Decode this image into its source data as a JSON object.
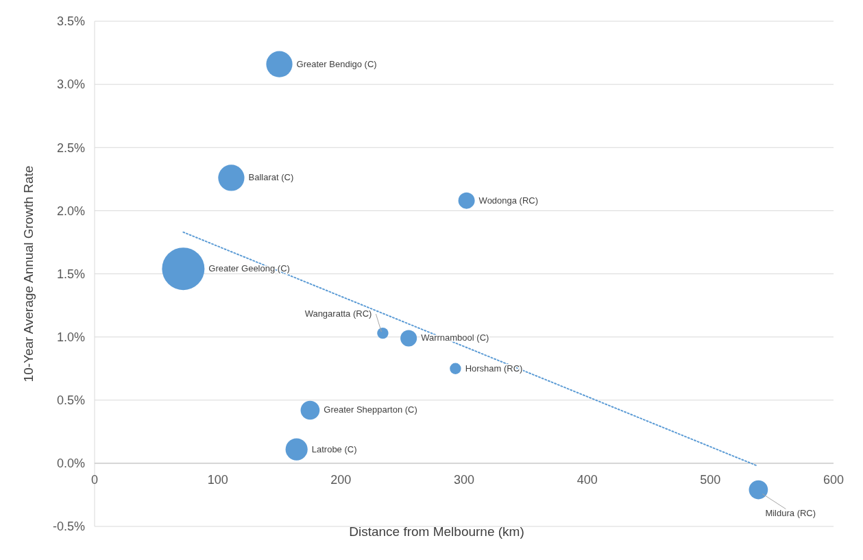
{
  "chart_data": {
    "type": "bubble",
    "xlabel": "Distance from Melbourne (km)",
    "ylabel": "10-Year Average Annual Growth Rate",
    "xlim": [
      0,
      600
    ],
    "xticks": [
      0,
      100,
      200,
      300,
      400,
      500,
      600
    ],
    "ylim": [
      -0.5,
      3.5
    ],
    "yticks": [
      {
        "value": -0.5,
        "label": "-0.5%"
      },
      {
        "value": 0,
        "label": "0.0%"
      },
      {
        "value": 0.5,
        "label": "0.5%"
      },
      {
        "value": 1,
        "label": "1.0%"
      },
      {
        "value": 1.5,
        "label": "1.5%"
      },
      {
        "value": 2,
        "label": "2.0%"
      },
      {
        "value": 2.5,
        "label": "2.5%"
      },
      {
        "value": 3,
        "label": "3.0%"
      },
      {
        "value": 3.5,
        "label": "3.5%"
      }
    ],
    "grid": "y",
    "series": [
      {
        "color": "#5b9bd5",
        "x": [
          150,
          111,
          302,
          72,
          234,
          255,
          293,
          175,
          164,
          539
        ],
        "values": [
          3.16,
          2.26,
          2.08,
          1.54,
          1.03,
          0.99,
          0.75,
          0.42,
          0.11,
          -0.21
        ],
        "sizes": [
          0.38,
          0.38,
          0.15,
          1,
          0.07,
          0.15,
          0.07,
          0.2,
          0.27,
          0.2
        ]
      },
      {
        "type": "line",
        "color": "#5b9bd5",
        "line_style": "dotted",
        "x": [
          72,
          538
        ],
        "values": [
          1.83,
          -0.02
        ]
      }
    ],
    "annotations": [
      {
        "text": "Greater Bendigo (C)",
        "x": 150,
        "y": 3.16
      },
      {
        "text": "Ballarat (C)",
        "x": 111,
        "y": 2.26
      },
      {
        "text": "Wodonga (RC)",
        "x": 302,
        "y": 2.08
      },
      {
        "text": "Greater Geelong (C)",
        "x": 72,
        "y": 1.54
      },
      {
        "text": "Wangaratta (RC)",
        "x": 234,
        "y": 1.03
      },
      {
        "text": "Warrnambool (C)",
        "x": 255,
        "y": 0.99
      },
      {
        "text": "Horsham (RC)",
        "x": 293,
        "y": 0.75
      },
      {
        "text": "Greater Shepparton (C)",
        "x": 175,
        "y": 0.42
      },
      {
        "text": "Latrobe (C)",
        "x": 164,
        "y": 0.11
      },
      {
        "text": "Mildura (RC)",
        "x": 539,
        "y": -0.21
      }
    ]
  }
}
